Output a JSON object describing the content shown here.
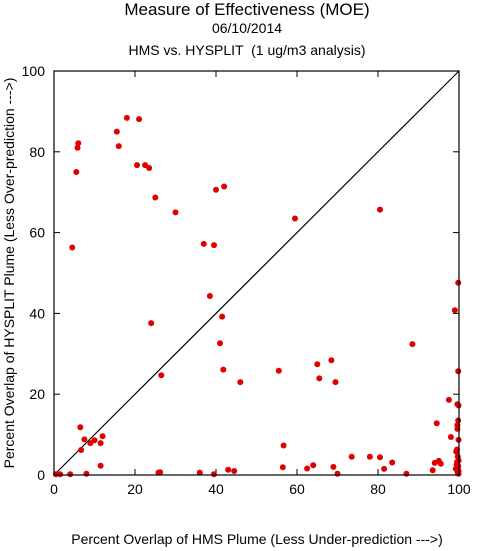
{
  "titles": {
    "line1": "Measure of Effectiveness (MOE)",
    "line2": "06/10/2014",
    "line3": "HMS vs. HYSPLIT  (1 ug/m3 analysis)"
  },
  "colors": {
    "point": "#e00000",
    "axis": "#000000",
    "diagonal": "#000000",
    "background": "#ffffff"
  },
  "chart_data": {
    "type": "scatter",
    "title": "Measure of Effectiveness (MOE)",
    "subtitle": "06/10/2014 | HMS vs. HYSPLIT  (1 ug/m3 analysis)",
    "xlabel": "Percent Overlap of HMS Plume (Less Under-prediction --->)",
    "ylabel": "Percent Overlap of HYSPLIT Plume (Less Over-prediction --->)",
    "xlim": [
      0,
      100
    ],
    "ylim": [
      0,
      100
    ],
    "xticks": [
      0,
      20,
      40,
      60,
      80,
      100
    ],
    "yticks": [
      0,
      20,
      40,
      60,
      80,
      100
    ],
    "grid": false,
    "reference_line": "y = x",
    "series": [
      {
        "points": [
          [
            0.5,
            0.2
          ],
          [
            1.5,
            0.2
          ],
          [
            4,
            0.2
          ],
          [
            4.5,
            56.3
          ],
          [
            5.5,
            75
          ],
          [
            5.8,
            81
          ],
          [
            6,
            82.1
          ],
          [
            6.5,
            11.8
          ],
          [
            6.7,
            6.2
          ],
          [
            7.5,
            8.8
          ],
          [
            8,
            0.3
          ],
          [
            9,
            7.9
          ],
          [
            10,
            8.6
          ],
          [
            11.5,
            2.3
          ],
          [
            11.5,
            7.9
          ],
          [
            12,
            9.6
          ],
          [
            15.5,
            85
          ],
          [
            16,
            81.4
          ],
          [
            18,
            88.4
          ],
          [
            20.5,
            76.7
          ],
          [
            21,
            88.1
          ],
          [
            22.5,
            76.7
          ],
          [
            23.5,
            76
          ],
          [
            24,
            37.6
          ],
          [
            25,
            68.7
          ],
          [
            25.8,
            0.6
          ],
          [
            26.2,
            0.7
          ],
          [
            26.5,
            24.7
          ],
          [
            30,
            65
          ],
          [
            36,
            0.6
          ],
          [
            37,
            57.2
          ],
          [
            38.5,
            44.3
          ],
          [
            39.5,
            0.2
          ],
          [
            39.5,
            56.9
          ],
          [
            40,
            70.6
          ],
          [
            41,
            32.6
          ],
          [
            41.5,
            39.2
          ],
          [
            41.8,
            26.1
          ],
          [
            42,
            71.4
          ],
          [
            43,
            1.3
          ],
          [
            44.5,
            1
          ],
          [
            46,
            23
          ],
          [
            55.5,
            25.8
          ],
          [
            56.5,
            1.9
          ],
          [
            56.7,
            7.3
          ],
          [
            59.5,
            63.5
          ],
          [
            62.5,
            1.6
          ],
          [
            64,
            2.4
          ],
          [
            65,
            27.4
          ],
          [
            65.5,
            23.9
          ],
          [
            68.5,
            28.4
          ],
          [
            69,
            2
          ],
          [
            69.5,
            23
          ],
          [
            70,
            0.3
          ],
          [
            73.5,
            4.5
          ],
          [
            78,
            4.5
          ],
          [
            80.5,
            4.4
          ],
          [
            80.5,
            65.7
          ],
          [
            81.5,
            1.5
          ],
          [
            83.5,
            3.1
          ],
          [
            87,
            0.3
          ],
          [
            88.5,
            32.4
          ],
          [
            93.5,
            1.2
          ],
          [
            94,
            3
          ],
          [
            94.5,
            12.8
          ],
          [
            95,
            3.5
          ],
          [
            95.5,
            2.8
          ],
          [
            97.5,
            18.6
          ],
          [
            98,
            9.4
          ],
          [
            99,
            40.8
          ],
          [
            99.2,
            1.5
          ],
          [
            99.3,
            5.8
          ],
          [
            99.4,
            2.5
          ],
          [
            99.5,
            3.2
          ],
          [
            99.5,
            6.3
          ],
          [
            99.6,
            11.4
          ],
          [
            99.6,
            12.3
          ],
          [
            99.6,
            17.5
          ],
          [
            99.7,
            0.6
          ],
          [
            99.7,
            1.9
          ],
          [
            99.7,
            4.5
          ],
          [
            99.8,
            2.2
          ],
          [
            99.8,
            13.5
          ],
          [
            99.8,
            25.7
          ],
          [
            99.8,
            47.6
          ],
          [
            99.9,
            0.3
          ],
          [
            99.9,
            1
          ],
          [
            99.9,
            3.6
          ],
          [
            99.9,
            8.7
          ],
          [
            99.9,
            17.2
          ]
        ]
      }
    ]
  }
}
